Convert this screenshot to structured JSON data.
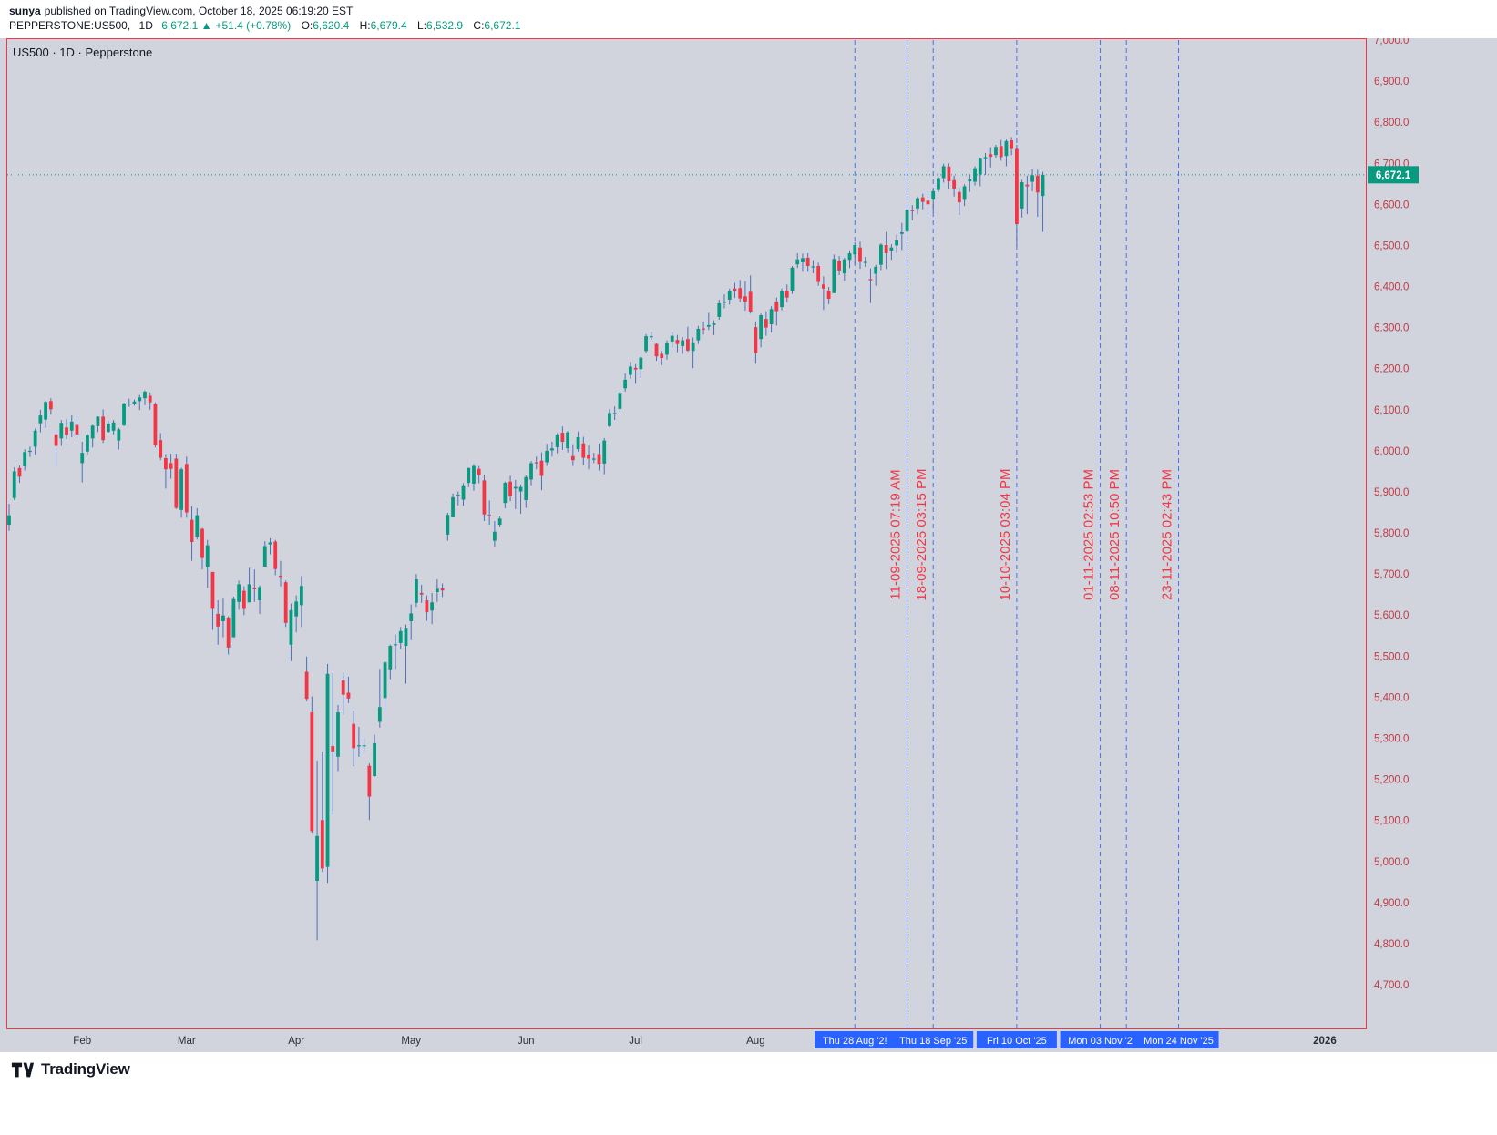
{
  "header": {
    "author": "sunya",
    "published_text": "published on TradingView.com, October 18, 2025 06:19:20 EST",
    "symbol": "PEPPERSTONE:US500,",
    "interval": "1D",
    "price": "6,672.1",
    "arrow": "▲",
    "change": "+51.4 (+0.78%)",
    "ohlc": {
      "o_label": "O:",
      "o": "6,620.4",
      "h_label": "H:",
      "h": "6,679.4",
      "l_label": "L:",
      "l": "6,532.9",
      "c_label": "C:",
      "c": "6,672.1"
    }
  },
  "legend": "US500 · 1D · Pepperstone",
  "footer": {
    "brand": "TradingView"
  },
  "chart_data": {
    "type": "candlestick",
    "symbol": "US500",
    "interval": "1D",
    "provider": "Pepperstone",
    "start_date": "2025-01-14",
    "note": "One OHLC candle per weekday beginning at start_date; values estimated from chart",
    "last_price": 6672.1,
    "y_axis": {
      "min_label": 4700,
      "max_label": 7000,
      "step": 100,
      "ylim": [
        4592,
        7004
      ]
    },
    "x_axis": {
      "months": [
        {
          "label": "Feb",
          "date": "2025-02-03"
        },
        {
          "label": "Mar",
          "date": "2025-03-03"
        },
        {
          "label": "Apr",
          "date": "2025-04-01"
        },
        {
          "label": "May",
          "date": "2025-05-01"
        },
        {
          "label": "Jun",
          "date": "2025-06-02"
        },
        {
          "label": "Jul",
          "date": "2025-07-01"
        },
        {
          "label": "Aug",
          "date": "2025-08-01"
        }
      ],
      "year_label": {
        "label": "2026",
        "date": "2026-01-01"
      },
      "highlighted": [
        {
          "label": "Thu 28 Aug '2!",
          "date": "2025-08-28"
        },
        {
          "label": "Thu 18 Sep '25",
          "date": "2025-09-18"
        },
        {
          "label": "Fri 10 Oct '25",
          "date": "2025-10-10"
        },
        {
          "label": "Mon 03 Nov '2",
          "date": "2025-11-03"
        },
        {
          "label": "Mon 24 Nov '25",
          "date": "2025-11-24"
        }
      ]
    },
    "event_lines": [
      {
        "date": "2025-08-28",
        "label": ""
      },
      {
        "date": "2025-09-11",
        "label": "11-09-2025 07:19 AM"
      },
      {
        "date": "2025-09-18",
        "label": "18-09-2025 03:15 PM"
      },
      {
        "date": "2025-10-10",
        "label": "10-10-2025 03:04 PM"
      },
      {
        "date": "2025-11-01",
        "label": "01-11-2025 02:53 PM"
      },
      {
        "date": "2025-11-08",
        "label": "08-11-2025 10:50 PM"
      },
      {
        "date": "2025-11-23",
        "label": "23-11-2025 02:43 PM"
      }
    ],
    "colors": {
      "bg": "#d1d4dc",
      "frame": "#f23645",
      "up": "#089981",
      "down": "#f23645",
      "wick": "#4f6db8",
      "event_line": "#2962ff",
      "event_label": "#f23645",
      "axis_text": "#bf3a45",
      "time_text": "#2a2e39",
      "price_line": "#089981",
      "badge_bg": "#089981",
      "badge_text": "#ffffff",
      "highlight_bg": "#2962ff",
      "highlight_text": "#ffffff"
    },
    "candles": [
      [
        5820,
        5871,
        5805,
        5843
      ],
      [
        5885,
        5960,
        5880,
        5950
      ],
      [
        5958,
        5964,
        5922,
        5937
      ],
      [
        5962,
        6004,
        5952,
        5997
      ],
      [
        5998,
        6010,
        5985,
        6000
      ],
      [
        6010,
        6054,
        5990,
        6049
      ],
      [
        6067,
        6100,
        6045,
        6086
      ],
      [
        6076,
        6122,
        6056,
        6119
      ],
      [
        6121,
        6128,
        6088,
        6101
      ],
      [
        6040,
        6051,
        5962,
        6012
      ],
      [
        6030,
        6075,
        6012,
        6068
      ],
      [
        6057,
        6077,
        6028,
        6039
      ],
      [
        6049,
        6086,
        6033,
        6071
      ],
      [
        6063,
        6083,
        6030,
        6040
      ],
      [
        5970,
        6022,
        5923,
        5995
      ],
      [
        5998,
        6042,
        5990,
        6038
      ],
      [
        6030,
        6063,
        6008,
        6061
      ],
      [
        6060,
        6084,
        6046,
        6083
      ],
      [
        6083,
        6101,
        6019,
        6026
      ],
      [
        6046,
        6073,
        6044,
        6066
      ],
      [
        6049,
        6075,
        6040,
        6069
      ],
      [
        6025,
        6056,
        6003,
        6052
      ],
      [
        6062,
        6117,
        6060,
        6115
      ],
      [
        6115,
        6127,
        6107,
        6115
      ],
      [
        6115,
        6125,
        6110,
        6120
      ],
      [
        6121,
        6136,
        6099,
        6130
      ],
      [
        6128,
        6147,
        6111,
        6144
      ],
      [
        6134,
        6142,
        6100,
        6118
      ],
      [
        6114,
        6118,
        6008,
        6013
      ],
      [
        6026,
        6043,
        5977,
        5983
      ],
      [
        5982,
        5992,
        5908,
        5955
      ],
      [
        5970,
        5993,
        5932,
        5956
      ],
      [
        5981,
        5993,
        5858,
        5861
      ],
      [
        5856,
        5959,
        5837,
        5955
      ],
      [
        5968,
        5986,
        5837,
        5850
      ],
      [
        5832,
        5865,
        5732,
        5778
      ],
      [
        5790,
        5860,
        5784,
        5843
      ],
      [
        5810,
        5812,
        5711,
        5739
      ],
      [
        5717,
        5783,
        5666,
        5770
      ],
      [
        5705,
        5705,
        5564,
        5615
      ],
      [
        5603,
        5636,
        5528,
        5572
      ],
      [
        5585,
        5642,
        5546,
        5599
      ],
      [
        5594,
        5597,
        5504,
        5521
      ],
      [
        5546,
        5645,
        5546,
        5639
      ],
      [
        5632,
        5684,
        5613,
        5675
      ],
      [
        5659,
        5670,
        5600,
        5615
      ],
      [
        5631,
        5715,
        5631,
        5675
      ],
      [
        5667,
        5711,
        5632,
        5663
      ],
      [
        5636,
        5672,
        5603,
        5668
      ],
      [
        5718,
        5780,
        5718,
        5768
      ],
      [
        5772,
        5787,
        5748,
        5777
      ],
      [
        5779,
        5783,
        5697,
        5712
      ],
      [
        5696,
        5732,
        5670,
        5693
      ],
      [
        5680,
        5684,
        5571,
        5581
      ],
      [
        5528,
        5628,
        5488,
        5612
      ],
      [
        5597,
        5648,
        5558,
        5633
      ],
      [
        5624,
        5695,
        5571,
        5671
      ],
      [
        5462,
        5499,
        5390,
        5396
      ],
      [
        5363,
        5402,
        5069,
        5074
      ],
      [
        4953,
        5246,
        4808,
        5062
      ],
      [
        5101,
        5268,
        4975,
        4983
      ],
      [
        4987,
        5481,
        4948,
        5457
      ],
      [
        5281,
        5459,
        5115,
        5268
      ],
      [
        5255,
        5381,
        5220,
        5363
      ],
      [
        5441,
        5459,
        5358,
        5406
      ],
      [
        5411,
        5450,
        5386,
        5397
      ],
      [
        5335,
        5367,
        5232,
        5276
      ],
      [
        5282,
        5328,
        5255,
        5283
      ],
      [
        5283,
        5300,
        5268,
        5283
      ],
      [
        5233,
        5239,
        5101,
        5158
      ],
      [
        5208,
        5309,
        5206,
        5288
      ],
      [
        5340,
        5469,
        5326,
        5376
      ],
      [
        5398,
        5488,
        5371,
        5485
      ],
      [
        5468,
        5528,
        5444,
        5525
      ],
      [
        5529,
        5553,
        5469,
        5529
      ],
      [
        5532,
        5571,
        5517,
        5561
      ],
      [
        5525,
        5577,
        5433,
        5569
      ],
      [
        5585,
        5626,
        5539,
        5604
      ],
      [
        5630,
        5700,
        5620,
        5687
      ],
      [
        5654,
        5674,
        5630,
        5650
      ],
      [
        5636,
        5648,
        5586,
        5607
      ],
      [
        5611,
        5654,
        5578,
        5631
      ],
      [
        5656,
        5687,
        5632,
        5664
      ],
      [
        5665,
        5677,
        5644,
        5660
      ],
      [
        5796,
        5849,
        5781,
        5844
      ],
      [
        5838,
        5896,
        5838,
        5887
      ],
      [
        5891,
        5901,
        5867,
        5893
      ],
      [
        5881,
        5921,
        5866,
        5916
      ],
      [
        5922,
        5959,
        5911,
        5958
      ],
      [
        5920,
        5968,
        5903,
        5963
      ],
      [
        5956,
        5963,
        5921,
        5941
      ],
      [
        5928,
        5942,
        5829,
        5845
      ],
      [
        5844,
        5879,
        5820,
        5842
      ],
      [
        5781,
        5829,
        5767,
        5803
      ],
      [
        5820,
        5840,
        5815,
        5835
      ],
      [
        5873,
        5925,
        5860,
        5922
      ],
      [
        5925,
        5939,
        5877,
        5889
      ],
      [
        5908,
        5929,
        5858,
        5912
      ],
      [
        5901,
        5918,
        5847,
        5912
      ],
      [
        5880,
        5940,
        5861,
        5936
      ],
      [
        5930,
        5975,
        5916,
        5970
      ],
      [
        5972,
        5986,
        5955,
        5971
      ],
      [
        5976,
        5996,
        5904,
        5939
      ],
      [
        5972,
        6017,
        5963,
        6000
      ],
      [
        6001,
        6022,
        5986,
        6006
      ],
      [
        6009,
        6043,
        5994,
        6039
      ],
      [
        6044,
        6059,
        6002,
        6022
      ],
      [
        6006,
        6048,
        5996,
        6045
      ],
      [
        5987,
        6016,
        5963,
        5977
      ],
      [
        6004,
        6047,
        5998,
        6033
      ],
      [
        6018,
        6034,
        5965,
        5983
      ],
      [
        5989,
        6013,
        5955,
        5981
      ],
      [
        5981,
        5995,
        5970,
        5981
      ],
      [
        5992,
        6018,
        5952,
        5968
      ],
      [
        5969,
        6031,
        5943,
        6025
      ],
      [
        6060,
        6101,
        6057,
        6092
      ],
      [
        6092,
        6108,
        6075,
        6092
      ],
      [
        6102,
        6146,
        6095,
        6141
      ],
      [
        6152,
        6188,
        6144,
        6173
      ],
      [
        6185,
        6216,
        6176,
        6205
      ],
      [
        6202,
        6211,
        6163,
        6198
      ],
      [
        6199,
        6229,
        6177,
        6227
      ],
      [
        6243,
        6284,
        6238,
        6279
      ],
      [
        6279,
        6290,
        6270,
        6279
      ],
      [
        6260,
        6263,
        6219,
        6230
      ],
      [
        6236,
        6243,
        6208,
        6226
      ],
      [
        6234,
        6269,
        6222,
        6263
      ],
      [
        6266,
        6290,
        6251,
        6280
      ],
      [
        6270,
        6282,
        6240,
        6260
      ],
      [
        6255,
        6277,
        6236,
        6269
      ],
      [
        6272,
        6302,
        6241,
        6244
      ],
      [
        6243,
        6276,
        6201,
        6264
      ],
      [
        6269,
        6304,
        6260,
        6297
      ],
      [
        6298,
        6315,
        6283,
        6297
      ],
      [
        6302,
        6336,
        6294,
        6306
      ],
      [
        6306,
        6318,
        6282,
        6310
      ],
      [
        6326,
        6368,
        6319,
        6359
      ],
      [
        6362,
        6381,
        6347,
        6363
      ],
      [
        6368,
        6395,
        6356,
        6389
      ],
      [
        6395,
        6409,
        6372,
        6390
      ],
      [
        6396,
        6416,
        6362,
        6371
      ],
      [
        6376,
        6413,
        6341,
        6363
      ],
      [
        6387,
        6427,
        6334,
        6339
      ],
      [
        6301,
        6315,
        6212,
        6238
      ],
      [
        6272,
        6334,
        6252,
        6330
      ],
      [
        6321,
        6340,
        6280,
        6300
      ],
      [
        6308,
        6352,
        6288,
        6345
      ],
      [
        6363,
        6373,
        6305,
        6340
      ],
      [
        6350,
        6395,
        6342,
        6389
      ],
      [
        6390,
        6405,
        6362,
        6373
      ],
      [
        6389,
        6450,
        6382,
        6446
      ],
      [
        6454,
        6481,
        6445,
        6466
      ],
      [
        6459,
        6480,
        6436,
        6469
      ],
      [
        6470,
        6481,
        6436,
        6450
      ],
      [
        6448,
        6464,
        6432,
        6449
      ],
      [
        6450,
        6458,
        6402,
        6411
      ],
      [
        6405,
        6425,
        6343,
        6395
      ],
      [
        6390,
        6399,
        6357,
        6370
      ],
      [
        6384,
        6478,
        6384,
        6467
      ],
      [
        6462,
        6474,
        6428,
        6439
      ],
      [
        6432,
        6470,
        6414,
        6466
      ],
      [
        6465,
        6488,
        6445,
        6481
      ],
      [
        6478,
        6508,
        6455,
        6501
      ],
      [
        6495,
        6509,
        6443,
        6460
      ],
      [
        6460,
        6472,
        6448,
        6460
      ],
      [
        6418,
        6444,
        6360,
        6415
      ],
      [
        6431,
        6453,
        6402,
        6448
      ],
      [
        6453,
        6505,
        6440,
        6502
      ],
      [
        6501,
        6533,
        6443,
        6481
      ],
      [
        6487,
        6503,
        6465,
        6495
      ],
      [
        6500,
        6526,
        6482,
        6512
      ],
      [
        6528,
        6555,
        6489,
        6532
      ],
      [
        6534,
        6590,
        6516,
        6587
      ],
      [
        6586,
        6598,
        6561,
        6584
      ],
      [
        6590,
        6619,
        6576,
        6615
      ],
      [
        6617,
        6626,
        6588,
        6606
      ],
      [
        6609,
        6633,
        6568,
        6600
      ],
      [
        6612,
        6637,
        6580,
        6632
      ],
      [
        6635,
        6667,
        6630,
        6664
      ],
      [
        6664,
        6699,
        6653,
        6693
      ],
      [
        6692,
        6700,
        6638,
        6656
      ],
      [
        6659,
        6670,
        6619,
        6638
      ],
      [
        6630,
        6640,
        6574,
        6605
      ],
      [
        6611,
        6649,
        6596,
        6644
      ],
      [
        6656,
        6672,
        6630,
        6661
      ],
      [
        6655,
        6693,
        6646,
        6688
      ],
      [
        6673,
        6714,
        6644,
        6711
      ],
      [
        6710,
        6725,
        6672,
        6715
      ],
      [
        6722,
        6739,
        6690,
        6716
      ],
      [
        6720,
        6745,
        6712,
        6740
      ],
      [
        6742,
        6757,
        6706,
        6715
      ],
      [
        6718,
        6758,
        6693,
        6754
      ],
      [
        6756,
        6764,
        6720,
        6735
      ],
      [
        6735,
        6745,
        6498,
        6552
      ],
      [
        6590,
        6660,
        6568,
        6654
      ],
      [
        6648,
        6670,
        6576,
        6644
      ],
      [
        6655,
        6686,
        6632,
        6671
      ],
      [
        6670,
        6684,
        6570,
        6629
      ],
      [
        6620.4,
        6679.4,
        6532.9,
        6672.1
      ]
    ]
  }
}
